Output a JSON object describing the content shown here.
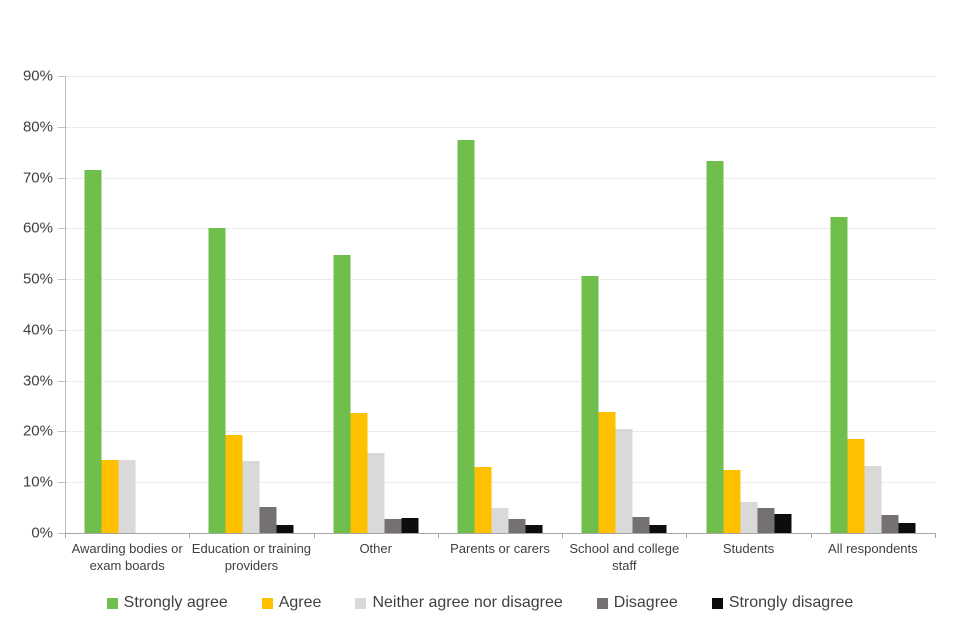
{
  "chart_data": {
    "type": "bar",
    "title": "",
    "categories": [
      "Awarding bodies or exam boards",
      "Education or training providers",
      "Other",
      "Parents or carers",
      "School and college staff",
      "Students",
      "All respondents"
    ],
    "series": [
      {
        "name": "Strongly agree",
        "color": "#70BE4B",
        "values": [
          71.4,
          60.0,
          54.8,
          77.4,
          50.7,
          73.2,
          62.3
        ]
      },
      {
        "name": "Agree",
        "color": "#FFC000",
        "values": [
          14.3,
          19.3,
          23.7,
          13.0,
          23.8,
          12.5,
          18.5
        ]
      },
      {
        "name": "Neither agree nor disagree",
        "color": "#D9D9D9",
        "values": [
          14.3,
          14.2,
          15.8,
          5.0,
          20.4,
          6.1,
          13.3
        ]
      },
      {
        "name": "Disagree",
        "color": "#767171",
        "values": [
          0,
          5.1,
          2.8,
          2.7,
          3.2,
          4.9,
          3.6
        ]
      },
      {
        "name": "Strongly disagree",
        "color": "#0D0D0D",
        "values": [
          0,
          1.5,
          2.9,
          1.5,
          1.6,
          3.7,
          1.9
        ]
      }
    ],
    "xlabel": "",
    "ylabel": "",
    "ylim": [
      0,
      90
    ],
    "ytick_step": 10,
    "ytick_labels": [
      "0%",
      "10%",
      "20%",
      "30%",
      "40%",
      "50%",
      "60%",
      "70%",
      "80%",
      "90%"
    ],
    "grid": "horizontal-dotted",
    "legend_position": "bottom"
  },
  "colors": {
    "background": "#FFFFFF",
    "text": "#404040",
    "axis_line": "#BFBFBF",
    "gridline": "#D9D9D9"
  }
}
